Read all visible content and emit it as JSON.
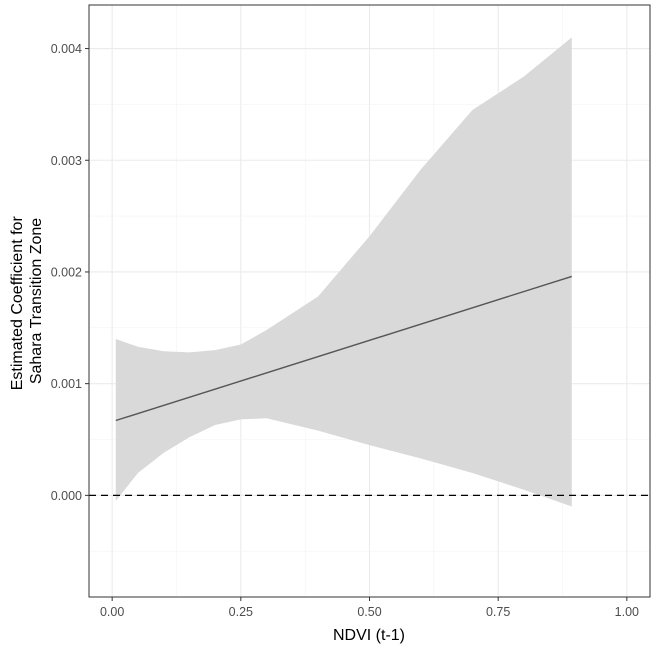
{
  "chart_data": {
    "type": "line",
    "xlabel": "NDVI (t-1)",
    "ylabel_lines": [
      "Estimated Coefficient for",
      "Sahara Transition Zone"
    ],
    "xlim": [
      -0.045,
      1.045
    ],
    "ylim": [
      -0.00091,
      0.00439
    ],
    "x_ticks": [
      0,
      0.25,
      0.5,
      0.75,
      1
    ],
    "x_tick_labels": [
      "0.00",
      "0.25",
      "0.50",
      "0.75",
      "1.00"
    ],
    "y_ticks": [
      0,
      0.001,
      0.002,
      0.003,
      0.004
    ],
    "y_tick_labels": [
      "0.000",
      "0.001",
      "0.002",
      "0.003",
      "0.004"
    ],
    "grid": true,
    "reference_line": {
      "y": 0,
      "style": "dashed"
    },
    "line": {
      "x": [
        0.007,
        0.893
      ],
      "y": [
        0.00067,
        0.00196
      ],
      "color": "#555555"
    },
    "ribbon": {
      "color": "#d9d9d9",
      "x": [
        0.007,
        0.05,
        0.1,
        0.15,
        0.2,
        0.25,
        0.3,
        0.4,
        0.5,
        0.6,
        0.7,
        0.8,
        0.893
      ],
      "upper": [
        0.0014,
        0.00133,
        0.00129,
        0.00128,
        0.0013,
        0.00135,
        0.00148,
        0.00178,
        0.00232,
        0.00292,
        0.00345,
        0.00375,
        0.0041
      ],
      "lower": [
        -5e-05,
        0.0002,
        0.00038,
        0.00052,
        0.00063,
        0.00068,
        0.00069,
        0.00058,
        0.00045,
        0.00033,
        0.0002,
        5e-05,
        -0.0001
      ]
    }
  }
}
